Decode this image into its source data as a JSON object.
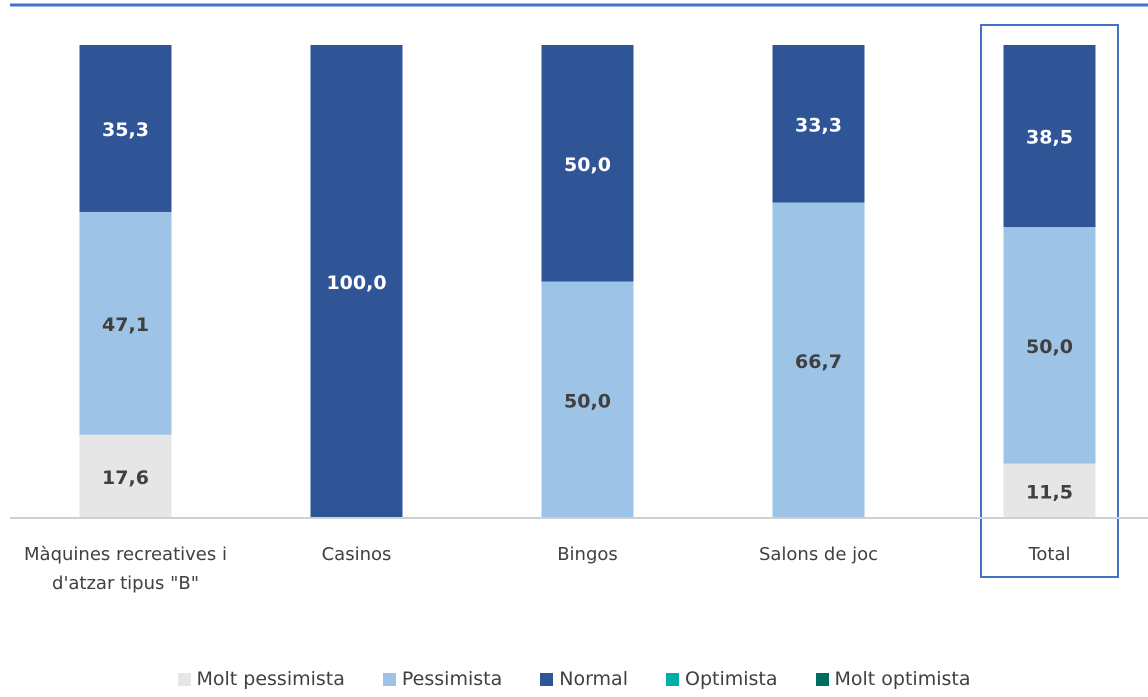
{
  "chart_data": {
    "type": "bar",
    "stacked": true,
    "categories": [
      "Màquines recreatives i d'atzar tipus \"B\"",
      "Casinos",
      "Bingos",
      "Salons de joc",
      "Total"
    ],
    "ylim": [
      0,
      100
    ],
    "series": [
      {
        "name": "Molt pessimista",
        "color": "#e7e6e6",
        "values": [
          17.6,
          0,
          0,
          0,
          11.5
        ],
        "value_labels": [
          "17,6",
          null,
          null,
          null,
          "11,5"
        ]
      },
      {
        "name": "Pessimista",
        "color": "#9dc3e6",
        "values": [
          47.1,
          0,
          50.0,
          66.7,
          50.0
        ],
        "value_labels": [
          "47,1",
          null,
          "50,0",
          "66,7",
          "50,0"
        ]
      },
      {
        "name": "Normal",
        "color": "#2f5597",
        "values": [
          35.3,
          100.0,
          50.0,
          33.3,
          38.5
        ],
        "value_labels": [
          "35,3",
          "100,0",
          "50,0",
          "33,3",
          "38,5"
        ]
      },
      {
        "name": "Optimista",
        "color": "#00b0a8",
        "values": [
          0,
          0,
          0,
          0,
          0
        ],
        "value_labels": [
          null,
          null,
          null,
          null,
          null
        ]
      },
      {
        "name": "Molt optimista",
        "color": "#006e5e",
        "values": [
          0,
          0,
          0,
          0,
          0
        ],
        "value_labels": [
          null,
          null,
          null,
          null,
          null
        ]
      }
    ]
  }
}
